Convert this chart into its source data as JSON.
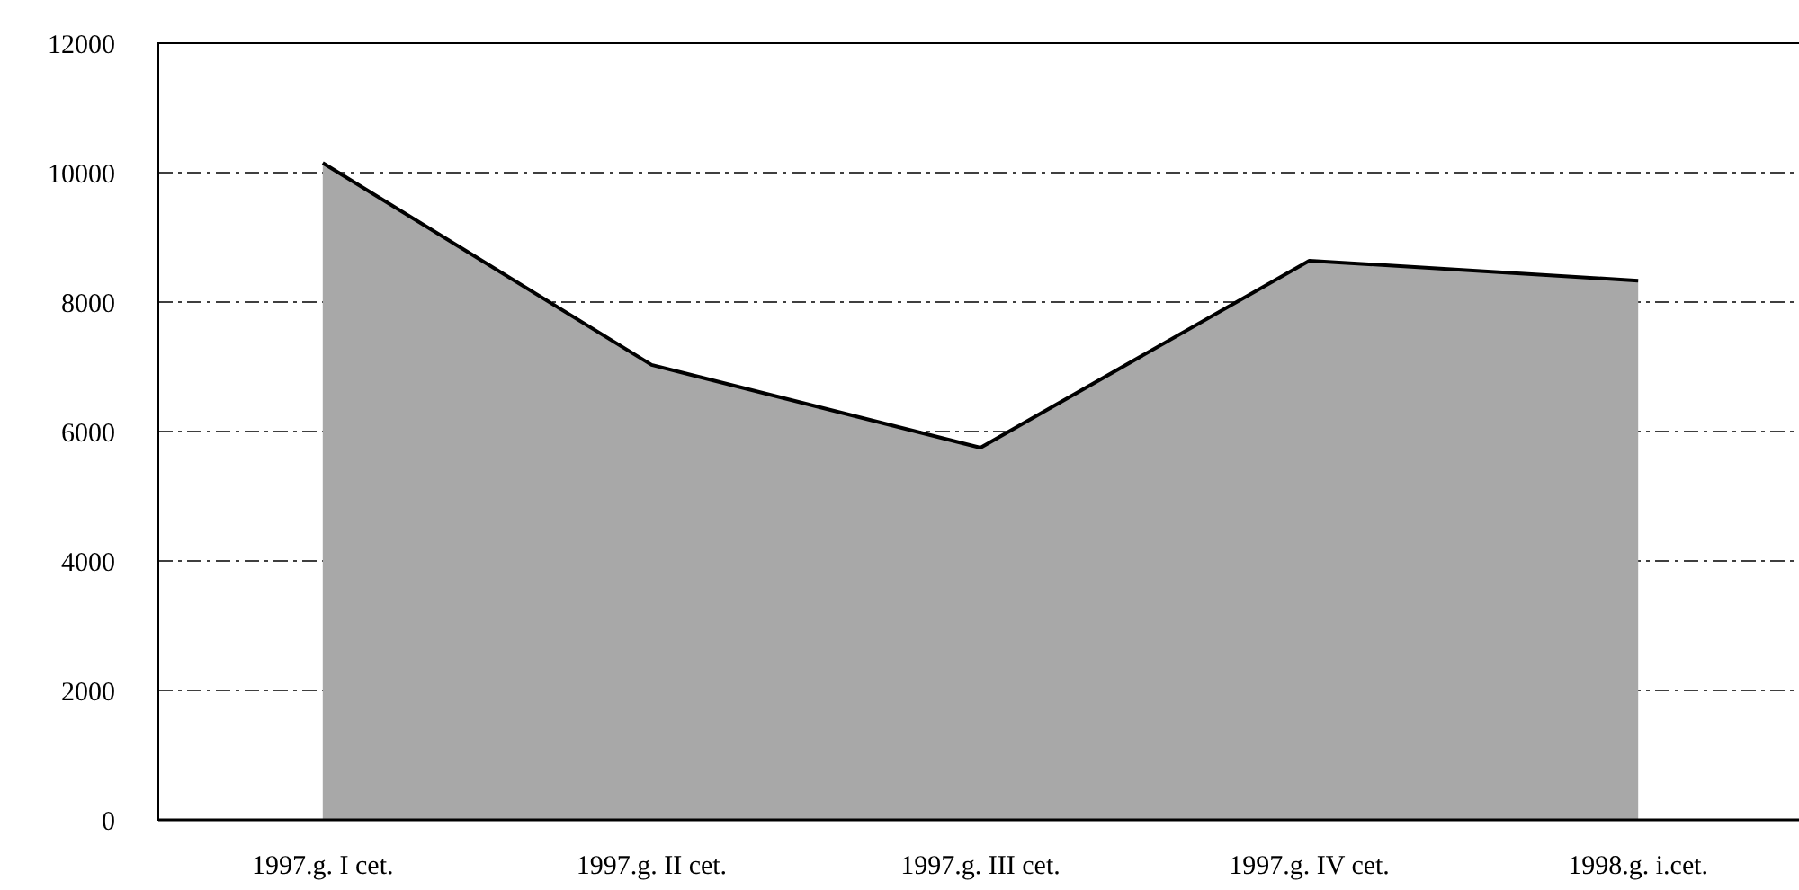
{
  "chart_data": {
    "type": "area",
    "categories": [
      "1997.g. I cet.",
      "1997.g. II cet.",
      "1997.g. III cet.",
      "1997.g. IV cet.",
      "1998.g. i.cet."
    ],
    "series": [
      {
        "color": "#a8a8a8",
        "values": [
          10150,
          7030,
          5750,
          8640,
          8330
        ]
      }
    ],
    "ylim": [
      0,
      12000
    ],
    "yticks": [
      0,
      2000,
      4000,
      6000,
      8000,
      10000,
      12000
    ],
    "grid": "y",
    "line_style": "dashed"
  }
}
